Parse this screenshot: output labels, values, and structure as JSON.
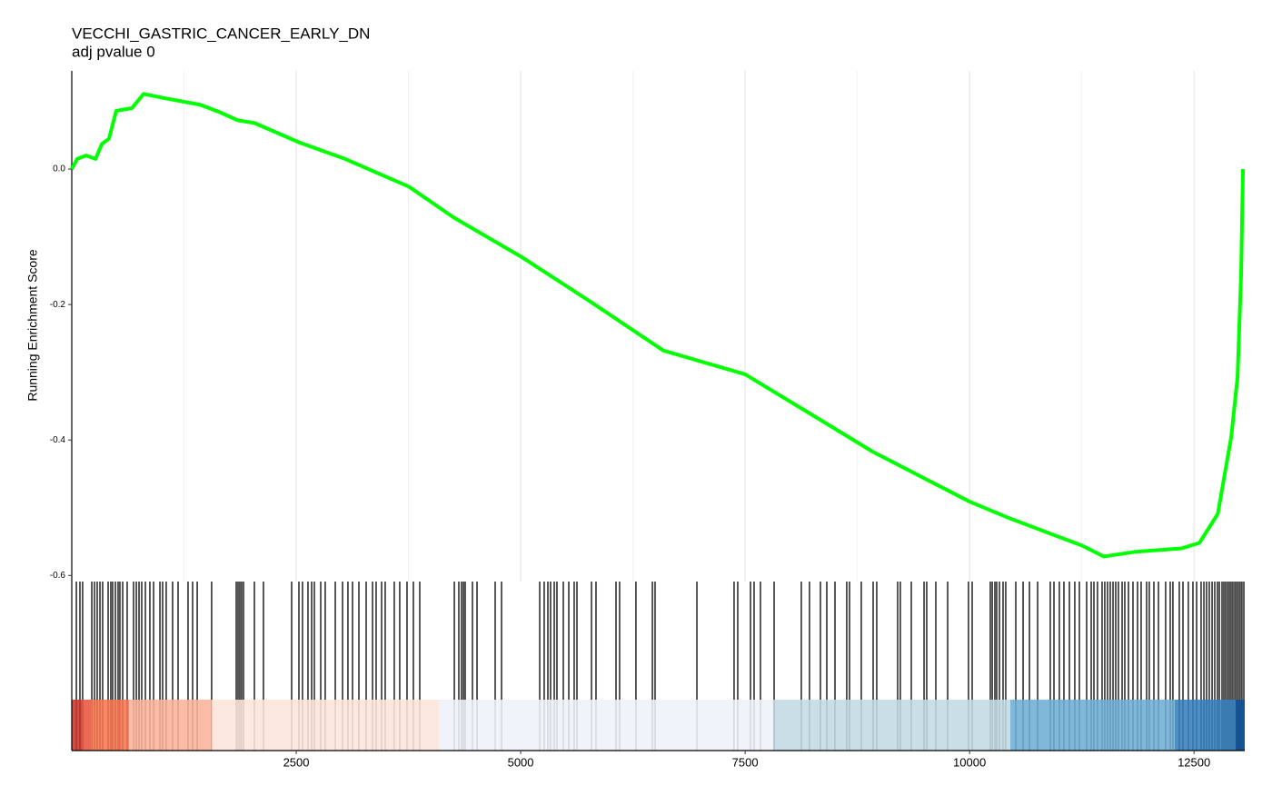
{
  "chart_data": {
    "type": "line",
    "title": "VECCHI_GASTRIC_CANCER_EARLY_DN",
    "subtitle": "adj pvalue 0",
    "ylabel": "Running Enrichment Score",
    "color": "#00ff00",
    "x": [
      0,
      60,
      160,
      265,
      335,
      415,
      495,
      670,
      800,
      1020,
      1430,
      1630,
      1850,
      2035,
      2540,
      3045,
      3755,
      4260,
      5000,
      5780,
      6590,
      7500,
      8310,
      8917,
      10000,
      10435,
      11255,
      11495,
      11850,
      12360,
      12560,
      12765,
      12915,
      12985,
      13025,
      13045
    ],
    "values": [
      0,
      0.015,
      0.02,
      0.015,
      0.037,
      0.045,
      0.086,
      0.09,
      0.111,
      0.105,
      0.095,
      0.085,
      0.072,
      0.068,
      0.039,
      0.015,
      -0.026,
      -0.072,
      -0.129,
      -0.196,
      -0.268,
      -0.303,
      -0.368,
      -0.417,
      -0.491,
      -0.515,
      -0.556,
      -0.572,
      -0.565,
      -0.56,
      -0.552,
      -0.509,
      -0.395,
      -0.307,
      -0.153,
      0
    ],
    "hits": [
      51,
      91,
      121,
      223,
      253,
      283,
      314,
      344,
      405,
      435,
      455,
      486,
      516,
      536,
      567,
      617,
      688,
      719,
      749,
      779,
      820,
      870,
      911,
      982,
      1012,
      1052,
      1123,
      1184,
      1295,
      1346,
      1397,
      1558,
      1832,
      1852,
      1872,
      1892,
      1913,
      2034,
      2135,
      2449,
      2530,
      2570,
      2631,
      2672,
      2702,
      2773,
      2823,
      2935,
      3016,
      3076,
      3127,
      3198,
      3279,
      3350,
      3390,
      3451,
      3491,
      3592,
      3653,
      3734,
      3805,
      3876,
      4261,
      4311,
      4341,
      4362,
      4382,
      4463,
      4514,
      4716,
      4787,
      5212,
      5262,
      5303,
      5333,
      5374,
      5404,
      5475,
      5536,
      5596,
      5627,
      5789,
      5839,
      6062,
      6102,
      6284,
      6467,
      6497,
      6963,
      7377,
      7418,
      7560,
      7600,
      7671,
      7823,
      8126,
      8217,
      8339,
      8410,
      8501,
      8632,
      8663,
      8794,
      8926,
      8966,
      9199,
      9229,
      9351,
      9493,
      9523,
      9624,
      9756,
      9988,
      10029,
      10231,
      10252,
      10282,
      10302,
      10333,
      10373,
      10403,
      10515,
      10596,
      10667,
      10758,
      10899,
      10940,
      11000,
      11051,
      11112,
      11172,
      11223,
      11304,
      11355,
      11385,
      11425,
      11476,
      11506,
      11537,
      11567,
      11598,
      11628,
      11658,
      11699,
      11729,
      11770,
      11820,
      11871,
      11911,
      11972,
      12002,
      12053,
      12104,
      12184,
      12235,
      12265,
      12336,
      12377,
      12437,
      12488,
      12529,
      12579,
      12610,
      12640,
      12670,
      12701,
      12731,
      12761,
      12782,
      12812,
      12832,
      12852,
      12873,
      12893,
      12913,
      12933,
      12954,
      12974,
      12994,
      13014,
      13034,
      13055
    ],
    "rank_bands": [
      {
        "start": 0,
        "end": 111,
        "color": "#c8342a"
      },
      {
        "start": 111,
        "end": 213,
        "color": "#e9553d"
      },
      {
        "start": 213,
        "end": 638,
        "color": "#f8754f"
      },
      {
        "start": 638,
        "end": 1558,
        "color": "#fbb39b"
      },
      {
        "start": 1558,
        "end": 4088,
        "color": "#fde5dc"
      },
      {
        "start": 4088,
        "end": 7813,
        "color": "#eff1fb"
      },
      {
        "start": 7813,
        "end": 10454,
        "color": "#c1d9e4"
      },
      {
        "start": 10454,
        "end": 12286,
        "color": "#6eaed5"
      },
      {
        "start": 12286,
        "end": 12964,
        "color": "#3680bd"
      },
      {
        "start": 12964,
        "end": 13065,
        "color": "#0d519b"
      }
    ],
    "xlim": [
      0,
      13065
    ],
    "ylim": [
      -0.609,
      0.145
    ],
    "xticks": [
      2500,
      5000,
      7500,
      10000,
      12500
    ],
    "xminor": [
      1250,
      3750,
      6250,
      8750,
      11250
    ],
    "yticks": [
      {
        "value": 0,
        "label": "0.0"
      },
      -0.2,
      -0.4,
      -0.6
    ],
    "grid": "x"
  }
}
